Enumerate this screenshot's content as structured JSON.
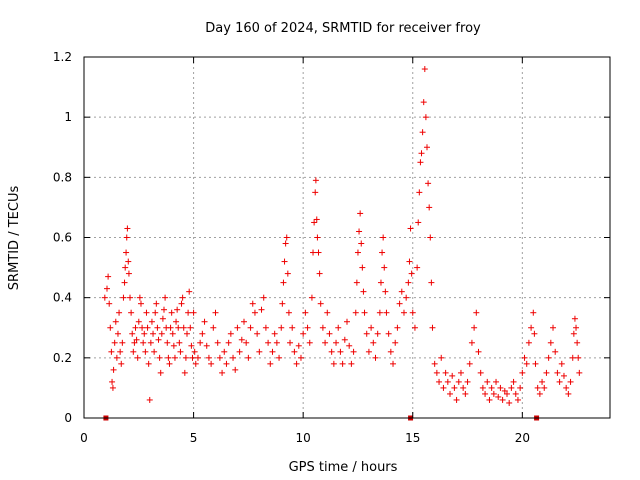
{
  "chart_data": {
    "type": "scatter",
    "title": "Day 160 of 2024, SRMTID for receiver froy",
    "xlabel": "GPS time / hours",
    "ylabel": "SRMTID / TECUs",
    "xlim": [
      0,
      24
    ],
    "ylim": [
      0,
      1.2
    ],
    "xticks": [
      0,
      5,
      10,
      15,
      20
    ],
    "xtick_labels": [
      "0",
      "5",
      "10",
      "15",
      "20"
    ],
    "yticks": [
      0,
      0.2,
      0.4,
      0.6,
      0.8,
      1.0,
      1.2
    ],
    "ytick_labels": [
      "0",
      "0.2",
      "0.4",
      "0.6",
      "0.8",
      "1",
      "1.2"
    ],
    "grid": true,
    "marker": "+",
    "color": "#ee0000",
    "series": [
      {
        "name": "SRMTID",
        "points": [
          [
            0.95,
            0.4
          ],
          [
            1.05,
            0.43
          ],
          [
            1.1,
            0.47
          ],
          [
            1.15,
            0.38
          ],
          [
            1.2,
            0.3
          ],
          [
            1.25,
            0.22
          ],
          [
            1.28,
            0.12
          ],
          [
            1.32,
            0.1
          ],
          [
            1.35,
            0.16
          ],
          [
            1.4,
            0.25
          ],
          [
            1.45,
            0.32
          ],
          [
            1.5,
            0.2
          ],
          [
            1.55,
            0.28
          ],
          [
            1.6,
            0.35
          ],
          [
            1.65,
            0.22
          ],
          [
            1.7,
            0.18
          ],
          [
            1.75,
            0.25
          ],
          [
            1.8,
            0.4
          ],
          [
            1.85,
            0.45
          ],
          [
            1.88,
            0.5
          ],
          [
            1.92,
            0.55
          ],
          [
            1.95,
            0.6
          ],
          [
            1.98,
            0.63
          ],
          [
            2.02,
            0.52
          ],
          [
            2.05,
            0.48
          ],
          [
            2.1,
            0.4
          ],
          [
            2.15,
            0.35
          ],
          [
            2.2,
            0.28
          ],
          [
            2.25,
            0.22
          ],
          [
            2.3,
            0.25
          ],
          [
            2.35,
            0.3
          ],
          [
            2.4,
            0.26
          ],
          [
            2.45,
            0.2
          ],
          [
            2.5,
            0.32
          ],
          [
            2.55,
            0.4
          ],
          [
            2.6,
            0.38
          ],
          [
            2.65,
            0.3
          ],
          [
            2.7,
            0.25
          ],
          [
            2.75,
            0.28
          ],
          [
            2.8,
            0.22
          ],
          [
            2.85,
            0.35
          ],
          [
            2.9,
            0.3
          ],
          [
            2.95,
            0.18
          ],
          [
            3.0,
            0.06
          ],
          [
            3.05,
            0.25
          ],
          [
            3.1,
            0.32
          ],
          [
            3.15,
            0.28
          ],
          [
            3.2,
            0.22
          ],
          [
            3.25,
            0.35
          ],
          [
            3.3,
            0.38
          ],
          [
            3.35,
            0.3
          ],
          [
            3.4,
            0.26
          ],
          [
            3.45,
            0.2
          ],
          [
            3.5,
            0.15
          ],
          [
            3.55,
            0.28
          ],
          [
            3.6,
            0.33
          ],
          [
            3.65,
            0.36
          ],
          [
            3.7,
            0.4
          ],
          [
            3.75,
            0.3
          ],
          [
            3.8,
            0.25
          ],
          [
            3.85,
            0.2
          ],
          [
            3.9,
            0.18
          ],
          [
            3.95,
            0.3
          ],
          [
            4.0,
            0.35
          ],
          [
            4.05,
            0.28
          ],
          [
            4.1,
            0.24
          ],
          [
            4.15,
            0.2
          ],
          [
            4.2,
            0.32
          ],
          [
            4.25,
            0.36
          ],
          [
            4.3,
            0.3
          ],
          [
            4.35,
            0.25
          ],
          [
            4.4,
            0.22
          ],
          [
            4.45,
            0.38
          ],
          [
            4.5,
            0.4
          ],
          [
            4.55,
            0.3
          ],
          [
            4.6,
            0.15
          ],
          [
            4.65,
            0.2
          ],
          [
            4.7,
            0.28
          ],
          [
            4.75,
            0.35
          ],
          [
            4.8,
            0.42
          ],
          [
            4.85,
            0.3
          ],
          [
            4.9,
            0.24
          ],
          [
            4.95,
            0.2
          ],
          [
            5.0,
            0.35
          ],
          [
            5.05,
            0.22
          ],
          [
            5.1,
            0.18
          ],
          [
            5.2,
            0.2
          ],
          [
            5.3,
            0.25
          ],
          [
            5.4,
            0.28
          ],
          [
            5.5,
            0.32
          ],
          [
            5.6,
            0.24
          ],
          [
            5.7,
            0.2
          ],
          [
            5.8,
            0.18
          ],
          [
            5.9,
            0.3
          ],
          [
            6.0,
            0.35
          ],
          [
            6.1,
            0.25
          ],
          [
            6.2,
            0.2
          ],
          [
            6.3,
            0.15
          ],
          [
            6.4,
            0.22
          ],
          [
            6.5,
            0.18
          ],
          [
            6.6,
            0.25
          ],
          [
            6.7,
            0.28
          ],
          [
            6.8,
            0.2
          ],
          [
            6.9,
            0.16
          ],
          [
            7.0,
            0.3
          ],
          [
            7.1,
            0.22
          ],
          [
            7.2,
            0.26
          ],
          [
            7.3,
            0.32
          ],
          [
            7.4,
            0.25
          ],
          [
            7.5,
            0.2
          ],
          [
            7.6,
            0.3
          ],
          [
            7.7,
            0.38
          ],
          [
            7.8,
            0.35
          ],
          [
            7.9,
            0.28
          ],
          [
            8.0,
            0.22
          ],
          [
            8.1,
            0.36
          ],
          [
            8.2,
            0.4
          ],
          [
            8.3,
            0.3
          ],
          [
            8.4,
            0.25
          ],
          [
            8.5,
            0.18
          ],
          [
            8.6,
            0.22
          ],
          [
            8.7,
            0.28
          ],
          [
            8.8,
            0.25
          ],
          [
            8.9,
            0.2
          ],
          [
            9.0,
            0.3
          ],
          [
            9.05,
            0.38
          ],
          [
            9.1,
            0.45
          ],
          [
            9.15,
            0.52
          ],
          [
            9.2,
            0.58
          ],
          [
            9.25,
            0.6
          ],
          [
            9.3,
            0.48
          ],
          [
            9.35,
            0.35
          ],
          [
            9.4,
            0.25
          ],
          [
            9.5,
            0.3
          ],
          [
            9.6,
            0.22
          ],
          [
            9.7,
            0.18
          ],
          [
            9.8,
            0.24
          ],
          [
            9.9,
            0.2
          ],
          [
            10.0,
            0.28
          ],
          [
            10.1,
            0.35
          ],
          [
            10.2,
            0.3
          ],
          [
            10.3,
            0.25
          ],
          [
            10.4,
            0.4
          ],
          [
            10.45,
            0.55
          ],
          [
            10.5,
            0.65
          ],
          [
            10.55,
            0.75
          ],
          [
            10.58,
            0.79
          ],
          [
            10.62,
            0.66
          ],
          [
            10.65,
            0.6
          ],
          [
            10.7,
            0.55
          ],
          [
            10.75,
            0.48
          ],
          [
            10.8,
            0.38
          ],
          [
            10.9,
            0.3
          ],
          [
            11.0,
            0.25
          ],
          [
            11.1,
            0.35
          ],
          [
            11.2,
            0.28
          ],
          [
            11.3,
            0.22
          ],
          [
            11.4,
            0.18
          ],
          [
            11.5,
            0.25
          ],
          [
            11.6,
            0.3
          ],
          [
            11.7,
            0.22
          ],
          [
            11.8,
            0.18
          ],
          [
            11.9,
            0.26
          ],
          [
            12.0,
            0.32
          ],
          [
            12.1,
            0.24
          ],
          [
            12.2,
            0.18
          ],
          [
            12.3,
            0.22
          ],
          [
            12.4,
            0.35
          ],
          [
            12.45,
            0.45
          ],
          [
            12.5,
            0.55
          ],
          [
            12.55,
            0.62
          ],
          [
            12.6,
            0.68
          ],
          [
            12.65,
            0.58
          ],
          [
            12.7,
            0.5
          ],
          [
            12.75,
            0.42
          ],
          [
            12.8,
            0.35
          ],
          [
            12.9,
            0.28
          ],
          [
            13.0,
            0.22
          ],
          [
            13.1,
            0.3
          ],
          [
            13.2,
            0.25
          ],
          [
            13.3,
            0.2
          ],
          [
            13.4,
            0.28
          ],
          [
            13.5,
            0.35
          ],
          [
            13.55,
            0.45
          ],
          [
            13.6,
            0.55
          ],
          [
            13.65,
            0.6
          ],
          [
            13.7,
            0.5
          ],
          [
            13.75,
            0.42
          ],
          [
            13.8,
            0.35
          ],
          [
            13.9,
            0.28
          ],
          [
            14.0,
            0.22
          ],
          [
            14.1,
            0.18
          ],
          [
            14.2,
            0.25
          ],
          [
            14.3,
            0.3
          ],
          [
            14.4,
            0.38
          ],
          [
            14.5,
            0.42
          ],
          [
            14.6,
            0.35
          ],
          [
            14.7,
            0.4
          ],
          [
            14.8,
            0.45
          ],
          [
            14.85,
            0.52
          ],
          [
            14.9,
            0.63
          ],
          [
            14.95,
            0.48
          ],
          [
            15.0,
            0.35
          ],
          [
            15.1,
            0.3
          ],
          [
            15.2,
            0.5
          ],
          [
            15.25,
            0.65
          ],
          [
            15.3,
            0.75
          ],
          [
            15.35,
            0.85
          ],
          [
            15.4,
            0.88
          ],
          [
            15.45,
            0.95
          ],
          [
            15.5,
            1.05
          ],
          [
            15.55,
            1.16
          ],
          [
            15.6,
            1.0
          ],
          [
            15.65,
            0.9
          ],
          [
            15.7,
            0.78
          ],
          [
            15.75,
            0.7
          ],
          [
            15.8,
            0.6
          ],
          [
            15.85,
            0.45
          ],
          [
            15.9,
            0.3
          ],
          [
            16.0,
            0.18
          ],
          [
            16.1,
            0.15
          ],
          [
            16.2,
            0.12
          ],
          [
            16.3,
            0.2
          ],
          [
            16.4,
            0.1
          ],
          [
            16.5,
            0.15
          ],
          [
            16.6,
            0.12
          ],
          [
            16.7,
            0.08
          ],
          [
            16.8,
            0.14
          ],
          [
            16.9,
            0.1
          ],
          [
            17.0,
            0.06
          ],
          [
            17.1,
            0.12
          ],
          [
            17.2,
            0.15
          ],
          [
            17.3,
            0.1
          ],
          [
            17.4,
            0.08
          ],
          [
            17.5,
            0.12
          ],
          [
            17.6,
            0.18
          ],
          [
            17.7,
            0.25
          ],
          [
            17.8,
            0.3
          ],
          [
            17.9,
            0.35
          ],
          [
            18.0,
            0.22
          ],
          [
            18.1,
            0.15
          ],
          [
            18.2,
            0.1
          ],
          [
            18.3,
            0.08
          ],
          [
            18.4,
            0.12
          ],
          [
            18.5,
            0.06
          ],
          [
            18.6,
            0.1
          ],
          [
            18.7,
            0.08
          ],
          [
            18.8,
            0.12
          ],
          [
            18.9,
            0.07
          ],
          [
            19.0,
            0.1
          ],
          [
            19.1,
            0.06
          ],
          [
            19.2,
            0.09
          ],
          [
            19.3,
            0.08
          ],
          [
            19.4,
            0.05
          ],
          [
            19.5,
            0.1
          ],
          [
            19.6,
            0.12
          ],
          [
            19.7,
            0.08
          ],
          [
            19.8,
            0.06
          ],
          [
            19.9,
            0.1
          ],
          [
            20.0,
            0.15
          ],
          [
            20.1,
            0.2
          ],
          [
            20.2,
            0.18
          ],
          [
            20.3,
            0.25
          ],
          [
            20.4,
            0.3
          ],
          [
            20.5,
            0.35
          ],
          [
            20.55,
            0.28
          ],
          [
            20.6,
            0.18
          ],
          [
            20.7,
            0.1
          ],
          [
            20.8,
            0.08
          ],
          [
            20.9,
            0.12
          ],
          [
            21.0,
            0.1
          ],
          [
            21.1,
            0.15
          ],
          [
            21.2,
            0.2
          ],
          [
            21.3,
            0.25
          ],
          [
            21.4,
            0.3
          ],
          [
            21.5,
            0.22
          ],
          [
            21.6,
            0.15
          ],
          [
            21.7,
            0.12
          ],
          [
            21.8,
            0.18
          ],
          [
            21.9,
            0.14
          ],
          [
            22.0,
            0.1
          ],
          [
            22.1,
            0.08
          ],
          [
            22.2,
            0.12
          ],
          [
            22.3,
            0.2
          ],
          [
            22.35,
            0.28
          ],
          [
            22.4,
            0.33
          ],
          [
            22.45,
            0.3
          ],
          [
            22.5,
            0.25
          ],
          [
            22.55,
            0.2
          ],
          [
            22.6,
            0.15
          ]
        ]
      }
    ],
    "markers_at_zero": [
      1.0,
      14.9,
      20.65
    ]
  }
}
